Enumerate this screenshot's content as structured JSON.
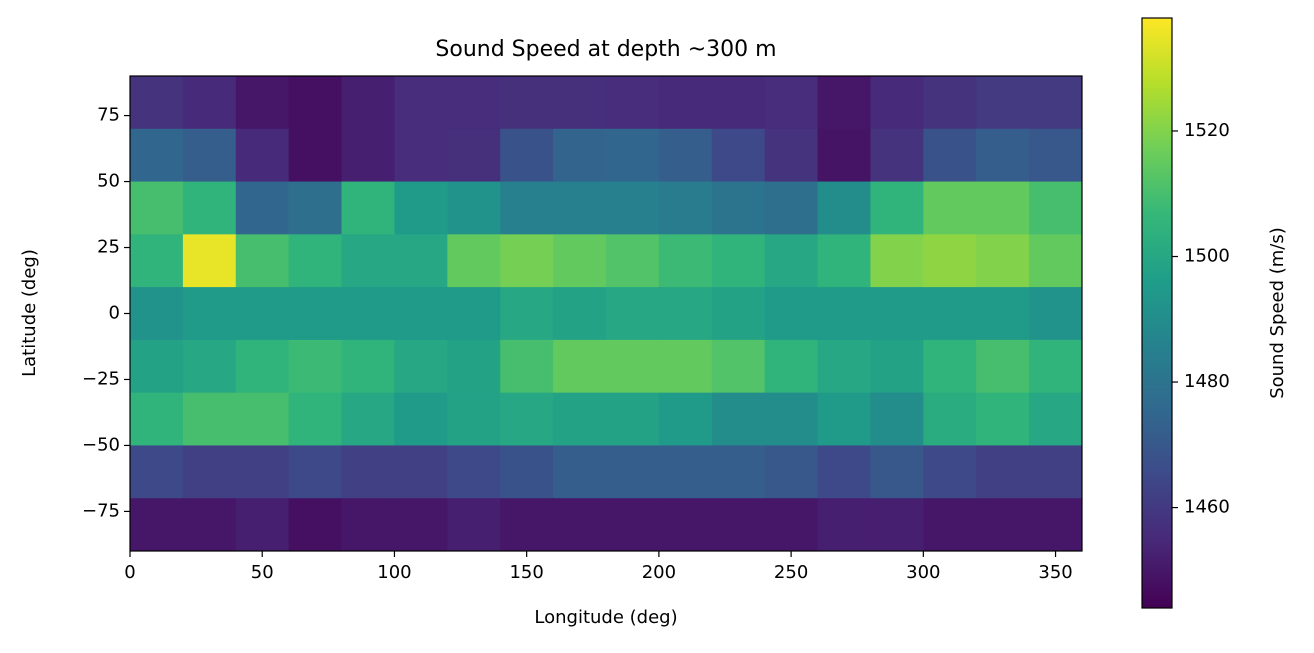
{
  "chart_data": {
    "type": "heatmap",
    "title": "Sound Speed at depth ~300 m",
    "x_label": "Longitude (deg)",
    "y_label": "Latitude (deg)",
    "colorbar_label": "Sound Speed (m/s)",
    "colormap": "viridis",
    "x": [
      10,
      30,
      50,
      70,
      90,
      110,
      130,
      150,
      170,
      190,
      210,
      230,
      250,
      270,
      290,
      310,
      330,
      350
    ],
    "y": [
      80,
      60,
      40,
      20,
      0,
      -20,
      -40,
      -60,
      -80
    ],
    "z": [
      [
        1458,
        1455,
        1450,
        1448,
        1452,
        1456,
        1456,
        1457,
        1457,
        1456,
        1455,
        1455,
        1456,
        1450,
        1455,
        1458,
        1460,
        1460
      ],
      [
        1475,
        1472,
        1455,
        1448,
        1452,
        1456,
        1457,
        1468,
        1474,
        1475,
        1472,
        1465,
        1458,
        1449,
        1458,
        1468,
        1472,
        1470
      ],
      [
        1510,
        1505,
        1475,
        1478,
        1505,
        1495,
        1492,
        1485,
        1485,
        1485,
        1483,
        1480,
        1478,
        1490,
        1505,
        1515,
        1515,
        1510
      ],
      [
        1505,
        1535,
        1510,
        1505,
        1500,
        1500,
        1515,
        1518,
        1515,
        1512,
        1508,
        1505,
        1500,
        1505,
        1520,
        1522,
        1520,
        1515
      ],
      [
        1492,
        1495,
        1495,
        1495,
        1495,
        1495,
        1495,
        1500,
        1498,
        1500,
        1500,
        1498,
        1495,
        1495,
        1495,
        1495,
        1495,
        1492
      ],
      [
        1498,
        1500,
        1505,
        1508,
        1505,
        1500,
        1498,
        1510,
        1515,
        1515,
        1515,
        1512,
        1505,
        1500,
        1498,
        1505,
        1510,
        1505
      ],
      [
        1505,
        1510,
        1510,
        1505,
        1500,
        1495,
        1498,
        1500,
        1498,
        1498,
        1495,
        1490,
        1490,
        1495,
        1490,
        1502,
        1505,
        1500
      ],
      [
        1465,
        1462,
        1462,
        1465,
        1462,
        1462,
        1465,
        1468,
        1472,
        1472,
        1472,
        1472,
        1470,
        1465,
        1470,
        1465,
        1462,
        1462
      ],
      [
        1450,
        1450,
        1452,
        1448,
        1450,
        1450,
        1452,
        1450,
        1450,
        1450,
        1450,
        1450,
        1450,
        1452,
        1452,
        1450,
        1450,
        1450
      ]
    ],
    "xlim": [
      0,
      360
    ],
    "ylim": [
      -90,
      90
    ],
    "xticks": [
      0,
      50,
      100,
      150,
      200,
      250,
      300,
      350
    ],
    "yticks": [
      {
        "value": -75,
        "label": "−75"
      },
      {
        "value": -50,
        "label": "−50"
      },
      {
        "value": -25,
        "label": "−25"
      },
      0,
      25,
      50,
      75
    ],
    "clim": [
      1444,
      1538
    ],
    "cticks": [
      1460,
      1480,
      1500,
      1520
    ]
  }
}
